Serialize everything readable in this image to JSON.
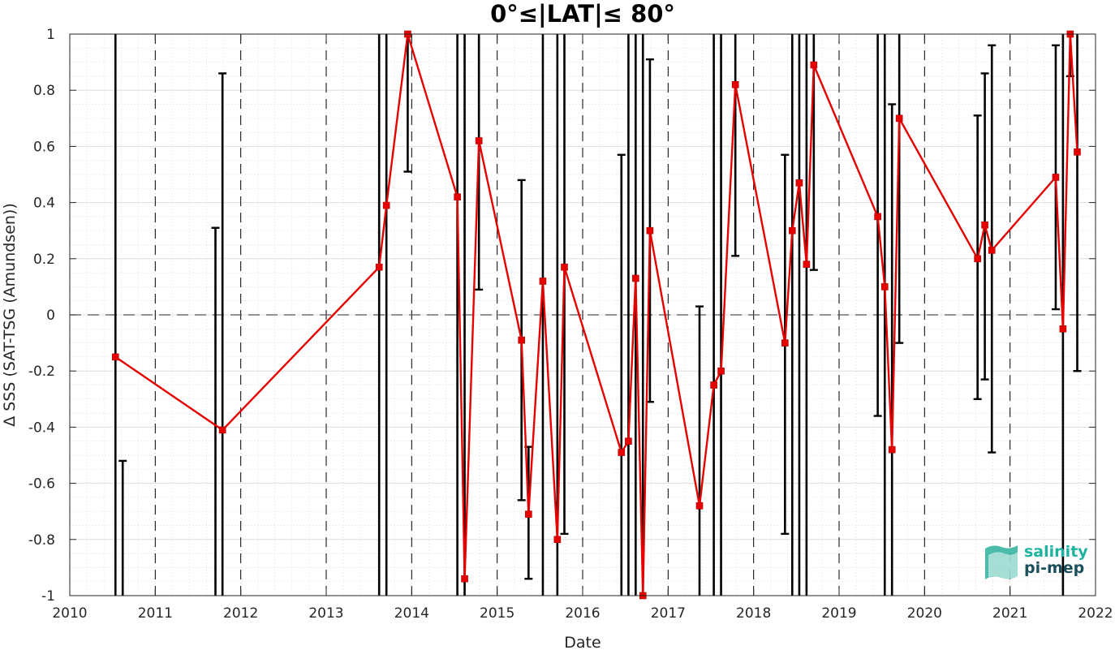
{
  "chart_data": {
    "type": "line",
    "title": "0°≤|LAT|≤ 80°",
    "xlabel": "Date",
    "ylabel": "Δ SSS (SAT-TSG (Amundsen))",
    "xlim": [
      "2010-01-01",
      "2022-01-01"
    ],
    "ylim": [
      -1,
      1
    ],
    "x_tick_labels": [
      "2010",
      "2011",
      "2012",
      "2013",
      "2014",
      "2015",
      "2016",
      "2017",
      "2018",
      "2019",
      "2020",
      "2021",
      "2022"
    ],
    "y_tick_labels": [
      "-1",
      "-0.8",
      "-0.6",
      "-0.4",
      "-0.2",
      "0",
      "0.2",
      "0.4",
      "0.6",
      "0.8",
      "1"
    ],
    "grid": true,
    "minor_grid": true,
    "zero_line": 0,
    "colors": {
      "series": "#e60000",
      "errorbar": "#000000",
      "year_lines": "#000000"
    },
    "series": [
      {
        "points": [
          {
            "date": "2010-07-15",
            "y": -0.15,
            "err_low": -1.0,
            "err_high": 1.0
          },
          {
            "date": "2011-10-15",
            "y": -0.41,
            "err_low": -1.0,
            "err_high": 0.86
          },
          {
            "date": "2013-08-15",
            "y": 0.17,
            "err_low": -1.0,
            "err_high": 1.0
          },
          {
            "date": "2013-09-15",
            "y": 0.39,
            "err_low": -1.0,
            "err_high": 1.0
          },
          {
            "date": "2013-12-15",
            "y": 1.0,
            "err_low": 0.51,
            "err_high": 1.0
          },
          {
            "date": "2014-07-15",
            "y": 0.42,
            "err_low": -1.0,
            "err_high": 1.0
          },
          {
            "date": "2014-08-15",
            "y": -0.94,
            "err_low": -1.0,
            "err_high": 1.0
          },
          {
            "date": "2014-10-15",
            "y": 0.62,
            "err_low": 0.09,
            "err_high": 1.0
          },
          {
            "date": "2015-04-15",
            "y": -0.09,
            "err_low": -0.66,
            "err_high": 0.48
          },
          {
            "date": "2015-05-15",
            "y": -0.71,
            "err_low": -0.94,
            "err_high": -0.47
          },
          {
            "date": "2015-07-15",
            "y": 0.12,
            "err_low": -1.0,
            "err_high": 1.0
          },
          {
            "date": "2015-09-15",
            "y": -0.8,
            "err_low": -1.0,
            "err_high": 1.0
          },
          {
            "date": "2015-10-15",
            "y": 0.17,
            "err_low": -0.78,
            "err_high": 1.0
          },
          {
            "date": "2016-06-15",
            "y": -0.49,
            "err_low": -1.0,
            "err_high": 0.57
          },
          {
            "date": "2016-07-15",
            "y": -0.45,
            "err_low": -1.0,
            "err_high": 1.0
          },
          {
            "date": "2016-08-15",
            "y": 0.13,
            "err_low": -1.0,
            "err_high": 1.0
          },
          {
            "date": "2016-09-15",
            "y": -1.0,
            "err_low": -1.0,
            "err_high": 1.0
          },
          {
            "date": "2016-10-15",
            "y": 0.3,
            "err_low": -0.31,
            "err_high": 0.91
          },
          {
            "date": "2017-05-15",
            "y": -0.68,
            "err_low": -1.0,
            "err_high": 0.03
          },
          {
            "date": "2017-07-15",
            "y": -0.25,
            "err_low": -1.0,
            "err_high": 1.0
          },
          {
            "date": "2017-08-15",
            "y": -0.2,
            "err_low": -1.0,
            "err_high": 1.0
          },
          {
            "date": "2017-10-15",
            "y": 0.82,
            "err_low": 0.21,
            "err_high": 1.0
          },
          {
            "date": "2018-05-15",
            "y": -0.1,
            "err_low": -0.78,
            "err_high": 0.57
          },
          {
            "date": "2018-06-15",
            "y": 0.3,
            "err_low": -1.0,
            "err_high": 1.0
          },
          {
            "date": "2018-07-15",
            "y": 0.47,
            "err_low": -1.0,
            "err_high": 1.0
          },
          {
            "date": "2018-08-15",
            "y": 0.18,
            "err_low": -1.0,
            "err_high": 1.0
          },
          {
            "date": "2018-09-15",
            "y": 0.89,
            "err_low": 0.16,
            "err_high": 1.0
          },
          {
            "date": "2019-06-15",
            "y": 0.35,
            "err_low": -0.36,
            "err_high": 1.0
          },
          {
            "date": "2019-07-15",
            "y": 0.1,
            "err_low": -1.0,
            "err_high": 1.0
          },
          {
            "date": "2019-08-15",
            "y": -0.48,
            "err_low": -1.0,
            "err_high": 0.75
          },
          {
            "date": "2019-09-15",
            "y": 0.7,
            "err_low": -0.1,
            "err_high": 1.0
          },
          {
            "date": "2020-08-15",
            "y": 0.2,
            "err_low": -0.3,
            "err_high": 0.71
          },
          {
            "date": "2020-09-15",
            "y": 0.32,
            "err_low": -0.23,
            "err_high": 0.86
          },
          {
            "date": "2020-10-15",
            "y": 0.23,
            "err_low": -0.49,
            "err_high": 0.96
          },
          {
            "date": "2021-07-15",
            "y": 0.49,
            "err_low": 0.02,
            "err_high": 0.96
          },
          {
            "date": "2021-08-15",
            "y": -0.05,
            "err_low": -1.0,
            "err_high": 1.0
          },
          {
            "date": "2021-09-15",
            "y": 1.0,
            "err_low": 0.85,
            "err_high": 1.0
          },
          {
            "date": "2021-10-15",
            "y": 0.58,
            "err_low": -0.2,
            "err_high": 1.0
          }
        ],
        "extra_errorbars": [
          {
            "date": "2010-08-15",
            "err_low": -1.0,
            "err_high": -0.52
          },
          {
            "date": "2011-09-15",
            "err_low": -1.0,
            "err_high": 0.31
          }
        ]
      }
    ]
  },
  "logo": {
    "line1": "salinity",
    "line2": "pi-mep",
    "colors": {
      "line1": "#20b2a0",
      "line2": "#1b4f5c",
      "mark": "#2ab09a"
    }
  }
}
